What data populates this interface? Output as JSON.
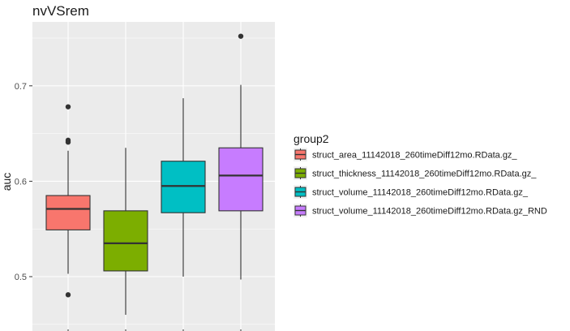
{
  "chart_data": {
    "type": "boxplot",
    "title": "nvVSrem",
    "xlabel": "",
    "ylabel": "auc",
    "ylim": [
      0.453,
      0.78
    ],
    "yticks": [
      0.5,
      0.6,
      0.7
    ],
    "grid": true,
    "legend": {
      "title": "group2",
      "position": "right"
    },
    "series": [
      {
        "name": "struct_area_11142018_260timeDiff12mo.RData.gz_",
        "color": "#F8766D",
        "whisker_low": 0.503,
        "q1": 0.549,
        "median": 0.571,
        "q3": 0.585,
        "whisker_high": 0.632,
        "outliers": [
          0.678,
          0.643,
          0.641,
          0.481
        ]
      },
      {
        "name": "struct_thickness_11142018_260timeDiff12mo.RData.gz_",
        "color": "#7CAE00",
        "whisker_low": 0.46,
        "q1": 0.506,
        "median": 0.535,
        "q3": 0.569,
        "whisker_high": 0.635,
        "outliers": []
      },
      {
        "name": "struct_volume_11142018_260timeDiff12mo.RData.gz_",
        "color": "#00BFC4",
        "whisker_low": 0.5,
        "q1": 0.567,
        "median": 0.595,
        "q3": 0.621,
        "whisker_high": 0.687,
        "outliers": []
      },
      {
        "name": "struct_volume_11142018_260timeDiff12mo.RData.gz_RND",
        "color": "#C77CFF",
        "whisker_low": 0.497,
        "q1": 0.569,
        "median": 0.606,
        "q3": 0.635,
        "whisker_high": 0.701,
        "outliers": [
          0.752
        ]
      }
    ]
  }
}
